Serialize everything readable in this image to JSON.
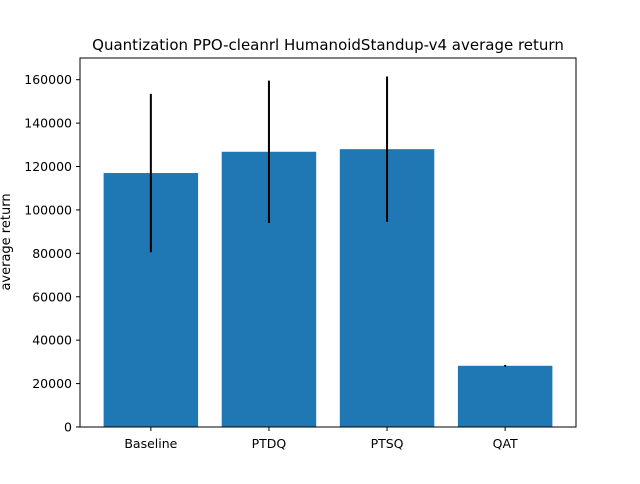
{
  "chart_data": {
    "type": "bar",
    "title": "Quantization PPO-cleanrl HumanoidStandup-v4 average return",
    "xlabel": "",
    "ylabel": "average return",
    "categories": [
      "Baseline",
      "PTDQ",
      "PTSQ",
      "QAT"
    ],
    "values": [
      117000,
      126800,
      128000,
      28200
    ],
    "errors": [
      36500,
      32800,
      33500,
      400
    ],
    "ylim": [
      0,
      170000
    ],
    "yticks": [
      0,
      20000,
      40000,
      60000,
      80000,
      100000,
      120000,
      140000,
      160000
    ],
    "ytick_labels": [
      "0",
      "20000",
      "40000",
      "60000",
      "80000",
      "100000",
      "120000",
      "140000",
      "160000"
    ],
    "bar_color": "#1f77b4",
    "error_color": "#000000",
    "grid": false,
    "legend": "none"
  }
}
